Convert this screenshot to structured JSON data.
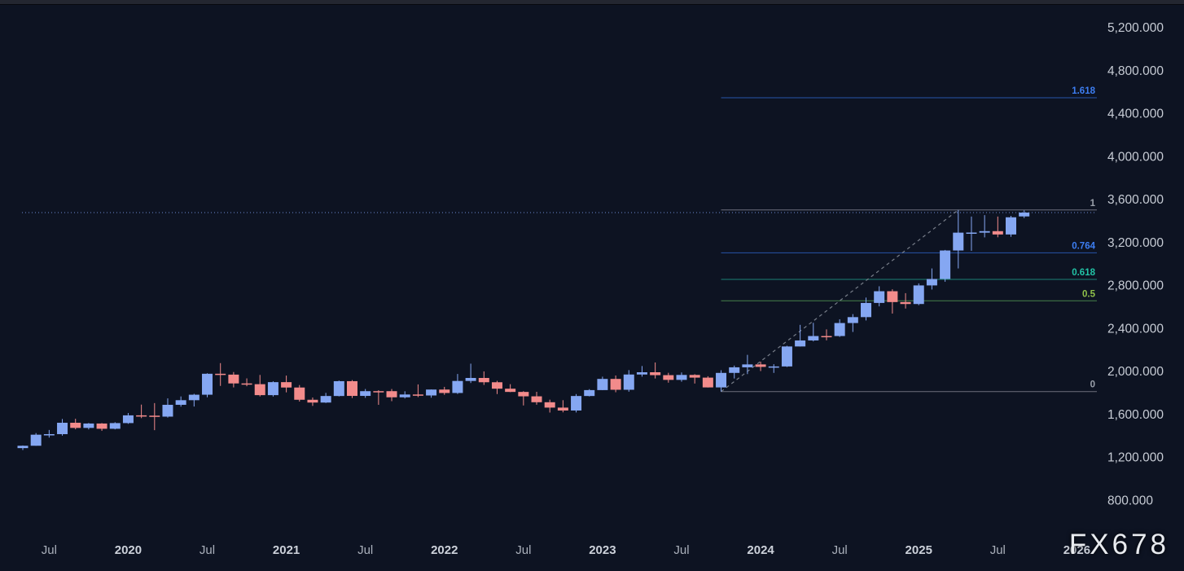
{
  "watermark": "FX678",
  "colors": {
    "background": "#0d1322",
    "bull_candle": "#85a7f2",
    "bear_candle": "#f28b8b",
    "fib_blue": "#3d7ef2",
    "fib_blue_line": "#2b5cb8",
    "fib_teal": "#22c3a6",
    "fib_teal_line": "#1e8e7e",
    "fib_green": "#8fc04a",
    "fib_green_line": "#4d8f50",
    "fib_gray": "#9aa0aa",
    "fib_gray_line": "#787b86",
    "trendline": "#8a909b",
    "price_line": "#7d9ff0",
    "axis_text": "#c7ccd5"
  },
  "chart_data": {
    "type": "candlestick",
    "timeframe": "monthly",
    "ylim": [
      800,
      5200
    ],
    "grid": false,
    "y_axis_ticks": [
      {
        "value": 5200,
        "label": "5,200.000"
      },
      {
        "value": 4800,
        "label": "4,800.000"
      },
      {
        "value": 4400,
        "label": "4,400.000"
      },
      {
        "value": 4000,
        "label": "4,000.000"
      },
      {
        "value": 3600,
        "label": "3,600.000"
      },
      {
        "value": 3200,
        "label": "3,200.000"
      },
      {
        "value": 2800,
        "label": "2,800.000"
      },
      {
        "value": 2400,
        "label": "2,400.000"
      },
      {
        "value": 2000,
        "label": "2,000.000"
      },
      {
        "value": 1600,
        "label": "1,600.000"
      },
      {
        "value": 1200,
        "label": "1,200.000"
      },
      {
        "value": 800,
        "label": "800.000"
      }
    ],
    "x_axis_ticks": [
      {
        "t": "2019-07",
        "label": "Jul",
        "bold": false
      },
      {
        "t": "2020-01",
        "label": "2020",
        "bold": true
      },
      {
        "t": "2020-07",
        "label": "Jul",
        "bold": false
      },
      {
        "t": "2021-01",
        "label": "2021",
        "bold": true
      },
      {
        "t": "2021-07",
        "label": "Jul",
        "bold": false
      },
      {
        "t": "2022-01",
        "label": "2022",
        "bold": true
      },
      {
        "t": "2022-07",
        "label": "Jul",
        "bold": false
      },
      {
        "t": "2023-01",
        "label": "2023",
        "bold": true
      },
      {
        "t": "2023-07",
        "label": "Jul",
        "bold": false
      },
      {
        "t": "2024-01",
        "label": "2024",
        "bold": true
      },
      {
        "t": "2024-07",
        "label": "Jul",
        "bold": false
      },
      {
        "t": "2025-01",
        "label": "2025",
        "bold": true
      },
      {
        "t": "2025-07",
        "label": "Jul",
        "bold": false
      },
      {
        "t": "2026-01",
        "label": "2026",
        "bold": true
      }
    ],
    "fib_retracement": {
      "start_t": "2023-10",
      "swing_low": 1810,
      "swing_high": 3500,
      "levels": [
        {
          "label": "1.618",
          "value": 4544,
          "label_color": "#3d7ef2",
          "line_color": "#2b5cb8"
        },
        {
          "label": "1",
          "value": 3500,
          "label_color": "#9aa0aa",
          "line_color": "#787b86"
        },
        {
          "label": "0.764",
          "value": 3101,
          "label_color": "#3d7ef2",
          "line_color": "#2b5cb8"
        },
        {
          "label": "0.618",
          "value": 2854,
          "label_color": "#22c3a6",
          "line_color": "#1e8e7e"
        },
        {
          "label": "0.5",
          "value": 2655,
          "label_color": "#8fc04a",
          "line_color": "#4d8f50"
        },
        {
          "label": "0",
          "value": 1810,
          "label_color": "#9aa0aa",
          "line_color": "#787b86"
        }
      ]
    },
    "trendline": {
      "from": {
        "t": "2023-10",
        "price": 1810
      },
      "to": {
        "t": "2025-04",
        "price": 3500
      },
      "style": "dashed"
    },
    "price_line": {
      "value": 3476,
      "style": "dotted",
      "full_width": true
    },
    "candles": [
      [
        "2019-05",
        1284,
        1309,
        1266,
        1306
      ],
      [
        "2019-06",
        1306,
        1424,
        1306,
        1409
      ],
      [
        "2019-07",
        1409,
        1453,
        1382,
        1414
      ],
      [
        "2019-08",
        1414,
        1555,
        1400,
        1520
      ],
      [
        "2019-09",
        1520,
        1557,
        1459,
        1472
      ],
      [
        "2019-10",
        1472,
        1518,
        1458,
        1513
      ],
      [
        "2019-11",
        1513,
        1517,
        1445,
        1464
      ],
      [
        "2019-12",
        1464,
        1525,
        1458,
        1517
      ],
      [
        "2020-01",
        1517,
        1611,
        1510,
        1589
      ],
      [
        "2020-02",
        1589,
        1689,
        1563,
        1586
      ],
      [
        "2020-03",
        1586,
        1703,
        1451,
        1577
      ],
      [
        "2020-04",
        1577,
        1747,
        1568,
        1687
      ],
      [
        "2020-05",
        1687,
        1765,
        1670,
        1730
      ],
      [
        "2020-06",
        1730,
        1789,
        1671,
        1781
      ],
      [
        "2020-07",
        1781,
        1981,
        1757,
        1976
      ],
      [
        "2020-08",
        1976,
        2075,
        1863,
        1968
      ],
      [
        "2020-09",
        1968,
        1992,
        1849,
        1886
      ],
      [
        "2020-10",
        1886,
        1933,
        1860,
        1879
      ],
      [
        "2020-11",
        1879,
        1965,
        1765,
        1777
      ],
      [
        "2020-12",
        1777,
        1906,
        1764,
        1898
      ],
      [
        "2021-01",
        1898,
        1959,
        1803,
        1848
      ],
      [
        "2021-02",
        1848,
        1871,
        1717,
        1734
      ],
      [
        "2021-03",
        1734,
        1755,
        1677,
        1708
      ],
      [
        "2021-04",
        1708,
        1798,
        1704,
        1769
      ],
      [
        "2021-05",
        1769,
        1913,
        1765,
        1907
      ],
      [
        "2021-06",
        1907,
        1917,
        1750,
        1770
      ],
      [
        "2021-07",
        1770,
        1834,
        1752,
        1814
      ],
      [
        "2021-08",
        1814,
        1823,
        1687,
        1812
      ],
      [
        "2021-09",
        1814,
        1834,
        1721,
        1757
      ],
      [
        "2021-10",
        1757,
        1813,
        1746,
        1783
      ],
      [
        "2021-11",
        1783,
        1877,
        1759,
        1774
      ],
      [
        "2021-12",
        1774,
        1830,
        1753,
        1829
      ],
      [
        "2022-01",
        1829,
        1854,
        1780,
        1797
      ],
      [
        "2022-02",
        1797,
        1974,
        1788,
        1909
      ],
      [
        "2022-03",
        1909,
        2070,
        1890,
        1937
      ],
      [
        "2022-04",
        1937,
        1998,
        1872,
        1897
      ],
      [
        "2022-05",
        1897,
        1910,
        1787,
        1837
      ],
      [
        "2022-06",
        1837,
        1879,
        1805,
        1807
      ],
      [
        "2022-07",
        1807,
        1814,
        1681,
        1766
      ],
      [
        "2022-08",
        1766,
        1808,
        1688,
        1711
      ],
      [
        "2022-09",
        1711,
        1735,
        1615,
        1661
      ],
      [
        "2022-10",
        1661,
        1730,
        1617,
        1634
      ],
      [
        "2022-11",
        1634,
        1787,
        1616,
        1769
      ],
      [
        "2022-12",
        1769,
        1833,
        1765,
        1824
      ],
      [
        "2023-01",
        1824,
        1949,
        1823,
        1928
      ],
      [
        "2023-02",
        1928,
        1960,
        1804,
        1827
      ],
      [
        "2023-03",
        1827,
        2010,
        1809,
        1969
      ],
      [
        "2023-04",
        1969,
        2048,
        1949,
        1990
      ],
      [
        "2023-05",
        1990,
        2081,
        1932,
        1963
      ],
      [
        "2023-06",
        1963,
        1985,
        1893,
        1919
      ],
      [
        "2023-07",
        1919,
        1988,
        1902,
        1965
      ],
      [
        "2023-08",
        1965,
        1972,
        1885,
        1940
      ],
      [
        "2023-09",
        1940,
        1953,
        1848,
        1849
      ],
      [
        "2023-10",
        1849,
        2009,
        1810,
        1984
      ],
      [
        "2023-11",
        1984,
        2052,
        1932,
        2036
      ],
      [
        "2023-12",
        2036,
        2152,
        1973,
        2063
      ],
      [
        "2024-01",
        2063,
        2088,
        2001,
        2040
      ],
      [
        "2024-02",
        2040,
        2065,
        1984,
        2044
      ],
      [
        "2024-03",
        2044,
        2236,
        2039,
        2230
      ],
      [
        "2024-04",
        2230,
        2431,
        2229,
        2286
      ],
      [
        "2024-05",
        2286,
        2450,
        2277,
        2327
      ],
      [
        "2024-06",
        2327,
        2389,
        2287,
        2326
      ],
      [
        "2024-07",
        2327,
        2483,
        2319,
        2448
      ],
      [
        "2024-08",
        2448,
        2531,
        2365,
        2503
      ],
      [
        "2024-09",
        2503,
        2685,
        2472,
        2635
      ],
      [
        "2024-10",
        2635,
        2790,
        2603,
        2744
      ],
      [
        "2024-11",
        2744,
        2762,
        2536,
        2643
      ],
      [
        "2024-12",
        2643,
        2726,
        2583,
        2625
      ],
      [
        "2025-01",
        2625,
        2817,
        2614,
        2798
      ],
      [
        "2025-02",
        2798,
        2956,
        2760,
        2858
      ],
      [
        "2025-03",
        2858,
        3128,
        2832,
        3123
      ],
      [
        "2025-04",
        3123,
        3500,
        2956,
        3289
      ],
      [
        "2025-05",
        3289,
        3439,
        3120,
        3290
      ],
      [
        "2025-06",
        3289,
        3452,
        3245,
        3303
      ],
      [
        "2025-07",
        3303,
        3439,
        3246,
        3272
      ],
      [
        "2025-08",
        3272,
        3445,
        3250,
        3432
      ],
      [
        "2025-09",
        3440,
        3496,
        3425,
        3476
      ]
    ]
  }
}
